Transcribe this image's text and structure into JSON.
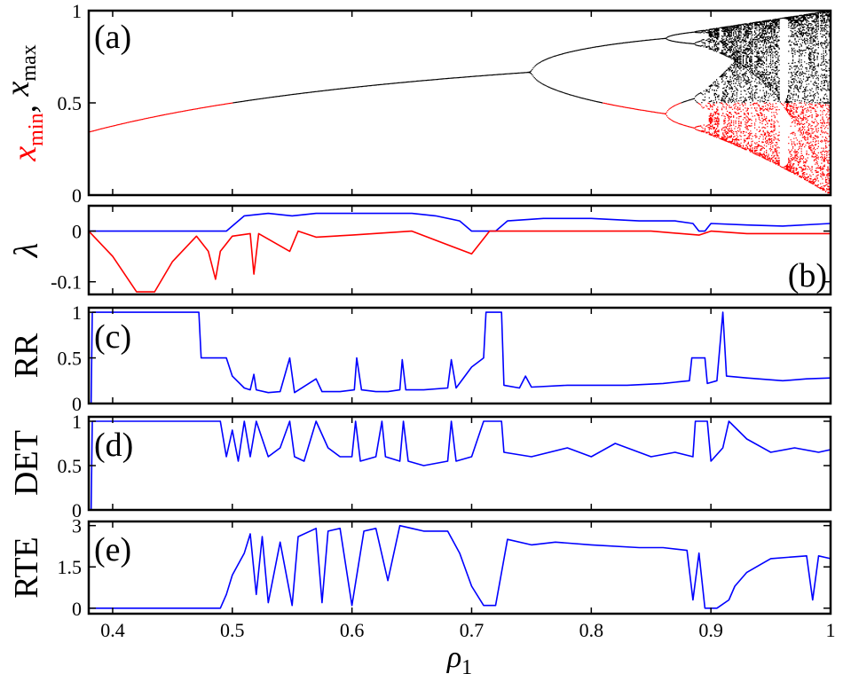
{
  "chart_data": [
    {
      "id": "a",
      "type": "scatter",
      "panel_label": "(a)",
      "ylabel_parts": [
        {
          "text": "x",
          "sub": "min",
          "color": "#ff0000"
        },
        {
          "text": ", ",
          "sub": "",
          "color": "#000000"
        },
        {
          "text": "x",
          "sub": "max",
          "color": "#000000"
        }
      ],
      "xlim": [
        0.38,
        1.0
      ],
      "ylim": [
        0,
        1
      ],
      "yticks": [
        {
          "value": 0,
          "label": "0"
        },
        {
          "value": 0.5,
          "label": "0.5"
        },
        {
          "value": 1,
          "label": "1"
        }
      ],
      "series": [
        {
          "role": "x_max",
          "color": "#000000"
        },
        {
          "role": "x_min",
          "color": "#ff0000"
        }
      ],
      "windows": [
        [
          0.585,
          0.59
        ],
        [
          0.604,
          0.607
        ],
        [
          0.629,
          0.632
        ],
        [
          0.7,
          0.722
        ],
        [
          0.883,
          0.898
        ]
      ]
    },
    {
      "id": "b",
      "type": "line",
      "panel_label": "(b)",
      "ylabel": "λ",
      "xlim": [
        0.38,
        1.0
      ],
      "ylim": [
        -0.125,
        0.05
      ],
      "yticks": [
        {
          "value": 0,
          "label": "0"
        },
        {
          "value": -0.1,
          "label": "-0.1"
        }
      ],
      "series": [
        {
          "color": "#0000ff",
          "points": [
            [
              0.38,
              0
            ],
            [
              0.495,
              0
            ],
            [
              0.5,
              0.01
            ],
            [
              0.51,
              0.03
            ],
            [
              0.53,
              0.035
            ],
            [
              0.55,
              0.03
            ],
            [
              0.57,
              0.035
            ],
            [
              0.59,
              0.035
            ],
            [
              0.62,
              0.035
            ],
            [
              0.65,
              0.035
            ],
            [
              0.67,
              0.03
            ],
            [
              0.69,
              0.02
            ],
            [
              0.7,
              0
            ],
            [
              0.72,
              0
            ],
            [
              0.73,
              0.02
            ],
            [
              0.76,
              0.025
            ],
            [
              0.8,
              0.025
            ],
            [
              0.84,
              0.02
            ],
            [
              0.87,
              0.02
            ],
            [
              0.885,
              0.015
            ],
            [
              0.89,
              0
            ],
            [
              0.895,
              0
            ],
            [
              0.9,
              0.015
            ],
            [
              0.93,
              0.012
            ],
            [
              0.96,
              0.01
            ],
            [
              1.0,
              0.015
            ]
          ]
        },
        {
          "color": "#ff0000",
          "points": [
            [
              0.38,
              0
            ],
            [
              0.4,
              -0.05
            ],
            [
              0.42,
              -0.12
            ],
            [
              0.435,
              -0.12
            ],
            [
              0.45,
              -0.06
            ],
            [
              0.47,
              -0.01
            ],
            [
              0.48,
              -0.04
            ],
            [
              0.486,
              -0.095
            ],
            [
              0.49,
              -0.04
            ],
            [
              0.5,
              -0.01
            ],
            [
              0.515,
              -0.005
            ],
            [
              0.518,
              -0.085
            ],
            [
              0.522,
              -0.005
            ],
            [
              0.548,
              -0.04
            ],
            [
              0.555,
              0
            ],
            [
              0.57,
              -0.012
            ],
            [
              0.6,
              -0.008
            ],
            [
              0.65,
              0
            ],
            [
              0.7,
              -0.045
            ],
            [
              0.715,
              0
            ],
            [
              0.75,
              0
            ],
            [
              0.8,
              0
            ],
            [
              0.85,
              0
            ],
            [
              0.89,
              -0.008
            ],
            [
              0.9,
              0
            ],
            [
              0.93,
              -0.005
            ],
            [
              1.0,
              -0.005
            ]
          ]
        }
      ]
    },
    {
      "id": "c",
      "type": "line",
      "panel_label": "(c)",
      "ylabel": "RR",
      "xlim": [
        0.38,
        1.0
      ],
      "ylim": [
        0,
        1.05
      ],
      "yticks": [
        {
          "value": 0,
          "label": "0"
        },
        {
          "value": 0.5,
          "label": "0.5"
        },
        {
          "value": 1,
          "label": "1"
        }
      ],
      "series": [
        {
          "color": "#0000ff",
          "points": [
            [
              0.38,
              0
            ],
            [
              0.382,
              0
            ],
            [
              0.383,
              1
            ],
            [
              0.472,
              1
            ],
            [
              0.474,
              0.5
            ],
            [
              0.495,
              0.5
            ],
            [
              0.5,
              0.3
            ],
            [
              0.51,
              0.17
            ],
            [
              0.515,
              0.15
            ],
            [
              0.518,
              0.32
            ],
            [
              0.52,
              0.15
            ],
            [
              0.53,
              0.12
            ],
            [
              0.54,
              0.13
            ],
            [
              0.548,
              0.5
            ],
            [
              0.552,
              0.12
            ],
            [
              0.57,
              0.27
            ],
            [
              0.575,
              0.13
            ],
            [
              0.59,
              0.13
            ],
            [
              0.602,
              0.15
            ],
            [
              0.604,
              0.5
            ],
            [
              0.608,
              0.15
            ],
            [
              0.62,
              0.13
            ],
            [
              0.63,
              0.13
            ],
            [
              0.64,
              0.15
            ],
            [
              0.642,
              0.48
            ],
            [
              0.645,
              0.15
            ],
            [
              0.66,
              0.15
            ],
            [
              0.68,
              0.17
            ],
            [
              0.683,
              0.48
            ],
            [
              0.687,
              0.17
            ],
            [
              0.7,
              0.4
            ],
            [
              0.71,
              0.5
            ],
            [
              0.712,
              1
            ],
            [
              0.725,
              1
            ],
            [
              0.727,
              0.2
            ],
            [
              0.74,
              0.17
            ],
            [
              0.745,
              0.3
            ],
            [
              0.75,
              0.18
            ],
            [
              0.78,
              0.2
            ],
            [
              0.8,
              0.2
            ],
            [
              0.83,
              0.2
            ],
            [
              0.86,
              0.22
            ],
            [
              0.882,
              0.25
            ],
            [
              0.884,
              0.5
            ],
            [
              0.895,
              0.5
            ],
            [
              0.897,
              0.22
            ],
            [
              0.905,
              0.25
            ],
            [
              0.91,
              1
            ],
            [
              0.913,
              0.3
            ],
            [
              0.93,
              0.28
            ],
            [
              0.96,
              0.25
            ],
            [
              0.98,
              0.27
            ],
            [
              1.0,
              0.28
            ]
          ]
        }
      ]
    },
    {
      "id": "d",
      "type": "line",
      "panel_label": "(d)",
      "ylabel": "DET",
      "xlim": [
        0.38,
        1.0
      ],
      "ylim": [
        0,
        1.05
      ],
      "yticks": [
        {
          "value": 0,
          "label": "0"
        },
        {
          "value": 0.5,
          "label": "0.5"
        },
        {
          "value": 1,
          "label": "1"
        }
      ],
      "series": [
        {
          "color": "#0000ff",
          "points": [
            [
              0.38,
              0
            ],
            [
              0.382,
              0
            ],
            [
              0.383,
              1
            ],
            [
              0.49,
              1
            ],
            [
              0.495,
              0.6
            ],
            [
              0.5,
              0.9
            ],
            [
              0.505,
              0.55
            ],
            [
              0.51,
              1
            ],
            [
              0.515,
              0.6
            ],
            [
              0.52,
              1
            ],
            [
              0.53,
              0.6
            ],
            [
              0.54,
              0.7
            ],
            [
              0.548,
              1
            ],
            [
              0.552,
              0.6
            ],
            [
              0.56,
              0.55
            ],
            [
              0.57,
              1
            ],
            [
              0.58,
              0.7
            ],
            [
              0.59,
              0.6
            ],
            [
              0.6,
              0.6
            ],
            [
              0.603,
              1
            ],
            [
              0.607,
              0.55
            ],
            [
              0.62,
              0.6
            ],
            [
              0.625,
              1
            ],
            [
              0.628,
              0.6
            ],
            [
              0.64,
              0.55
            ],
            [
              0.643,
              1
            ],
            [
              0.647,
              0.55
            ],
            [
              0.66,
              0.5
            ],
            [
              0.68,
              0.55
            ],
            [
              0.683,
              1
            ],
            [
              0.687,
              0.55
            ],
            [
              0.7,
              0.6
            ],
            [
              0.71,
              1
            ],
            [
              0.725,
              1
            ],
            [
              0.727,
              0.65
            ],
            [
              0.75,
              0.6
            ],
            [
              0.78,
              0.7
            ],
            [
              0.8,
              0.6
            ],
            [
              0.82,
              0.75
            ],
            [
              0.85,
              0.6
            ],
            [
              0.87,
              0.65
            ],
            [
              0.885,
              0.6
            ],
            [
              0.887,
              1
            ],
            [
              0.897,
              1
            ],
            [
              0.9,
              0.55
            ],
            [
              0.91,
              0.7
            ],
            [
              0.915,
              1
            ],
            [
              0.93,
              0.8
            ],
            [
              0.95,
              0.65
            ],
            [
              0.97,
              0.7
            ],
            [
              0.99,
              0.65
            ],
            [
              1.0,
              0.68
            ]
          ]
        }
      ]
    },
    {
      "id": "e",
      "type": "line",
      "panel_label": "(e)",
      "ylabel": "RTE",
      "xlim": [
        0.38,
        1.0
      ],
      "ylim": [
        -0.2,
        3.15
      ],
      "yticks": [
        {
          "value": 0,
          "label": "0"
        },
        {
          "value": 1.5,
          "label": "1.5"
        },
        {
          "value": 3,
          "label": "3"
        }
      ],
      "series": [
        {
          "color": "#0000ff",
          "points": [
            [
              0.38,
              0
            ],
            [
              0.49,
              0
            ],
            [
              0.495,
              0.5
            ],
            [
              0.5,
              1.2
            ],
            [
              0.51,
              2.0
            ],
            [
              0.515,
              2.7
            ],
            [
              0.52,
              0.5
            ],
            [
              0.525,
              2.6
            ],
            [
              0.53,
              0.2
            ],
            [
              0.54,
              2.4
            ],
            [
              0.55,
              0.1
            ],
            [
              0.555,
              2.6
            ],
            [
              0.57,
              2.9
            ],
            [
              0.575,
              0.2
            ],
            [
              0.58,
              2.8
            ],
            [
              0.59,
              2.9
            ],
            [
              0.6,
              0.1
            ],
            [
              0.61,
              2.8
            ],
            [
              0.62,
              2.9
            ],
            [
              0.63,
              1.0
            ],
            [
              0.64,
              3.0
            ],
            [
              0.65,
              2.9
            ],
            [
              0.66,
              2.8
            ],
            [
              0.68,
              2.8
            ],
            [
              0.69,
              2.0
            ],
            [
              0.7,
              0.8
            ],
            [
              0.71,
              0.1
            ],
            [
              0.72,
              0.1
            ],
            [
              0.73,
              2.5
            ],
            [
              0.75,
              2.3
            ],
            [
              0.77,
              2.4
            ],
            [
              0.8,
              2.3
            ],
            [
              0.84,
              2.2
            ],
            [
              0.86,
              2.2
            ],
            [
              0.88,
              2.1
            ],
            [
              0.885,
              0.3
            ],
            [
              0.89,
              2.0
            ],
            [
              0.895,
              0
            ],
            [
              0.905,
              0
            ],
            [
              0.915,
              0.3
            ],
            [
              0.92,
              0.8
            ],
            [
              0.93,
              1.3
            ],
            [
              0.95,
              1.8
            ],
            [
              0.98,
              1.9
            ],
            [
              0.985,
              0.3
            ],
            [
              0.99,
              1.9
            ],
            [
              1.0,
              1.8
            ]
          ]
        }
      ]
    }
  ],
  "x_axis": {
    "label": "ρ",
    "label_sub": "1",
    "ticks": [
      {
        "value": 0.4,
        "label": "0.4"
      },
      {
        "value": 0.5,
        "label": "0.5"
      },
      {
        "value": 0.6,
        "label": "0.6"
      },
      {
        "value": 0.7,
        "label": "0.7"
      },
      {
        "value": 0.8,
        "label": "0.8"
      },
      {
        "value": 0.9,
        "label": "0.9"
      },
      {
        "value": 1.0,
        "label": "1"
      }
    ]
  }
}
